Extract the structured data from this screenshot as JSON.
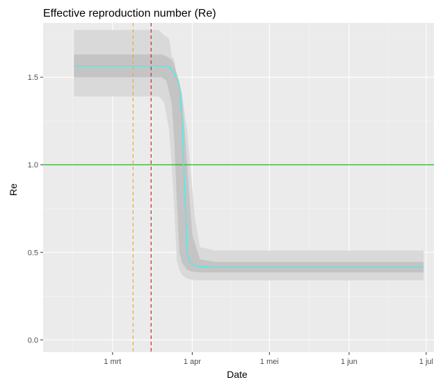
{
  "chart_data": {
    "type": "line",
    "title": "Effective reproduction number (Re)",
    "xlabel": "Date",
    "ylabel": "Re",
    "xlim": [
      "2020-02-03",
      "2020-07-04"
    ],
    "ylim": [
      -0.07,
      1.81
    ],
    "grid": true,
    "legend": "none",
    "x_ticks": [
      {
        "date": "2020-03-01",
        "label": "1 mrt"
      },
      {
        "date": "2020-04-01",
        "label": "1 apr"
      },
      {
        "date": "2020-05-01",
        "label": "1 mei"
      },
      {
        "date": "2020-06-01",
        "label": "1 jun"
      },
      {
        "date": "2020-07-01",
        "label": "1 jul"
      }
    ],
    "y_ticks": [
      {
        "value": 0.0,
        "label": "0.0"
      },
      {
        "value": 0.5,
        "label": "0.5"
      },
      {
        "value": 1.0,
        "label": "1.0"
      },
      {
        "value": 1.5,
        "label": "1.5"
      }
    ],
    "series": [
      {
        "type": "line",
        "color": "#5ee6e6",
        "points": [
          {
            "x": "2020-02-15",
            "y": 1.565
          },
          {
            "x": "2020-03-01",
            "y": 1.565
          },
          {
            "x": "2020-03-15",
            "y": 1.565
          },
          {
            "x": "2020-03-21",
            "y": 1.565
          },
          {
            "x": "2020-03-23",
            "y": 1.56
          },
          {
            "x": "2020-03-25",
            "y": 1.52
          },
          {
            "x": "2020-03-27",
            "y": 1.45
          },
          {
            "x": "2020-03-28",
            "y": 1.25
          },
          {
            "x": "2020-03-29",
            "y": 0.85
          },
          {
            "x": "2020-03-30",
            "y": 0.5
          },
          {
            "x": "2020-03-31",
            "y": 0.44
          },
          {
            "x": "2020-04-03",
            "y": 0.42
          },
          {
            "x": "2020-04-10",
            "y": 0.415
          },
          {
            "x": "2020-05-01",
            "y": 0.415
          },
          {
            "x": "2020-06-01",
            "y": 0.415
          },
          {
            "x": "2020-06-30",
            "y": 0.415
          }
        ]
      }
    ],
    "bands": [
      {
        "level": "outer",
        "color": "#d9d9d9",
        "points": [
          {
            "x": "2020-02-15",
            "lo": 1.39,
            "hi": 1.77
          },
          {
            "x": "2020-03-01",
            "lo": 1.39,
            "hi": 1.77
          },
          {
            "x": "2020-03-15",
            "lo": 1.39,
            "hi": 1.77
          },
          {
            "x": "2020-03-19",
            "lo": 1.39,
            "hi": 1.77
          },
          {
            "x": "2020-03-21",
            "lo": 1.36,
            "hi": 1.74
          },
          {
            "x": "2020-03-23",
            "lo": 1.2,
            "hi": 1.72
          },
          {
            "x": "2020-03-24",
            "lo": 1.0,
            "hi": 1.62
          },
          {
            "x": "2020-03-25",
            "lo": 0.75,
            "hi": 1.6
          },
          {
            "x": "2020-03-26",
            "lo": 0.45,
            "hi": 1.5
          },
          {
            "x": "2020-03-27",
            "lo": 0.4,
            "hi": 1.45
          },
          {
            "x": "2020-03-28",
            "lo": 0.37,
            "hi": 1.4
          },
          {
            "x": "2020-03-30",
            "lo": 0.35,
            "hi": 1.2
          },
          {
            "x": "2020-04-02",
            "lo": 0.34,
            "hi": 0.7
          },
          {
            "x": "2020-04-04",
            "lo": 0.34,
            "hi": 0.53
          },
          {
            "x": "2020-04-10",
            "lo": 0.34,
            "hi": 0.51
          },
          {
            "x": "2020-05-01",
            "lo": 0.34,
            "hi": 0.51
          },
          {
            "x": "2020-06-01",
            "lo": 0.34,
            "hi": 0.51
          },
          {
            "x": "2020-06-30",
            "lo": 0.34,
            "hi": 0.51
          }
        ]
      },
      {
        "level": "inner",
        "color": "#c4c4c4",
        "points": [
          {
            "x": "2020-02-15",
            "lo": 1.5,
            "hi": 1.63
          },
          {
            "x": "2020-03-01",
            "lo": 1.5,
            "hi": 1.63
          },
          {
            "x": "2020-03-15",
            "lo": 1.5,
            "hi": 1.63
          },
          {
            "x": "2020-03-20",
            "lo": 1.5,
            "hi": 1.63
          },
          {
            "x": "2020-03-22",
            "lo": 1.48,
            "hi": 1.62
          },
          {
            "x": "2020-03-24",
            "lo": 1.35,
            "hi": 1.6
          },
          {
            "x": "2020-03-25",
            "lo": 1.15,
            "hi": 1.57
          },
          {
            "x": "2020-03-26",
            "lo": 0.8,
            "hi": 1.52
          },
          {
            "x": "2020-03-27",
            "lo": 0.5,
            "hi": 1.47
          },
          {
            "x": "2020-03-28",
            "lo": 0.44,
            "hi": 1.4
          },
          {
            "x": "2020-03-30",
            "lo": 0.4,
            "hi": 1.0
          },
          {
            "x": "2020-04-01",
            "lo": 0.39,
            "hi": 0.6
          },
          {
            "x": "2020-04-04",
            "lo": 0.385,
            "hi": 0.46
          },
          {
            "x": "2020-04-10",
            "lo": 0.385,
            "hi": 0.445
          },
          {
            "x": "2020-05-01",
            "lo": 0.385,
            "hi": 0.445
          },
          {
            "x": "2020-06-01",
            "lo": 0.385,
            "hi": 0.445
          },
          {
            "x": "2020-06-30",
            "lo": 0.385,
            "hi": 0.445
          }
        ]
      }
    ],
    "reference_lines": [
      {
        "orientation": "horizontal",
        "value": 1.0,
        "color": "#22b022",
        "dashed": false
      },
      {
        "orientation": "vertical",
        "date": "2020-03-09",
        "color": "#f5a623",
        "dashed": true
      },
      {
        "orientation": "vertical",
        "date": "2020-03-16",
        "color": "#e41a1c",
        "dashed": true
      }
    ],
    "colors": {
      "panel_background": "#ebebeb",
      "grid_major": "#ffffff",
      "grid_minor": "#f5f5f5",
      "axis_text": "#4d4d4d",
      "text": "#000000"
    }
  }
}
